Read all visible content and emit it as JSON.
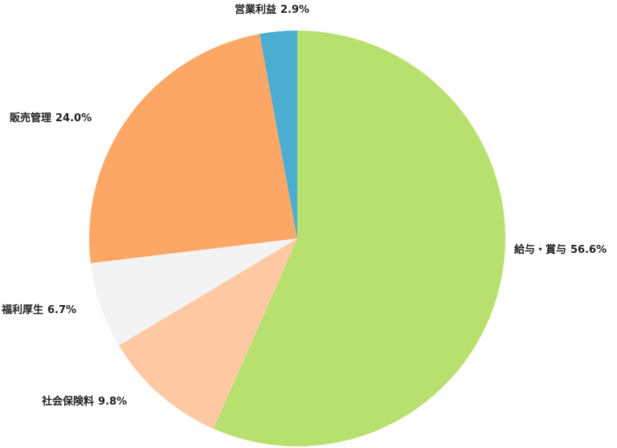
{
  "chart_data": {
    "type": "pie",
    "categories": [
      "給与・賞与",
      "社会保険料",
      "福利厚生",
      "販売管理",
      "営業利益"
    ],
    "values": [
      56.6,
      9.8,
      6.7,
      24.0,
      2.9
    ],
    "value_labels": [
      "56.6%",
      "9.8%",
      "6.7%",
      "24.0%",
      "2.9%"
    ],
    "colors": [
      "#b8e06e",
      "#ffc9a3",
      "#f3f3f3",
      "#fda766",
      "#4baed0"
    ]
  }
}
